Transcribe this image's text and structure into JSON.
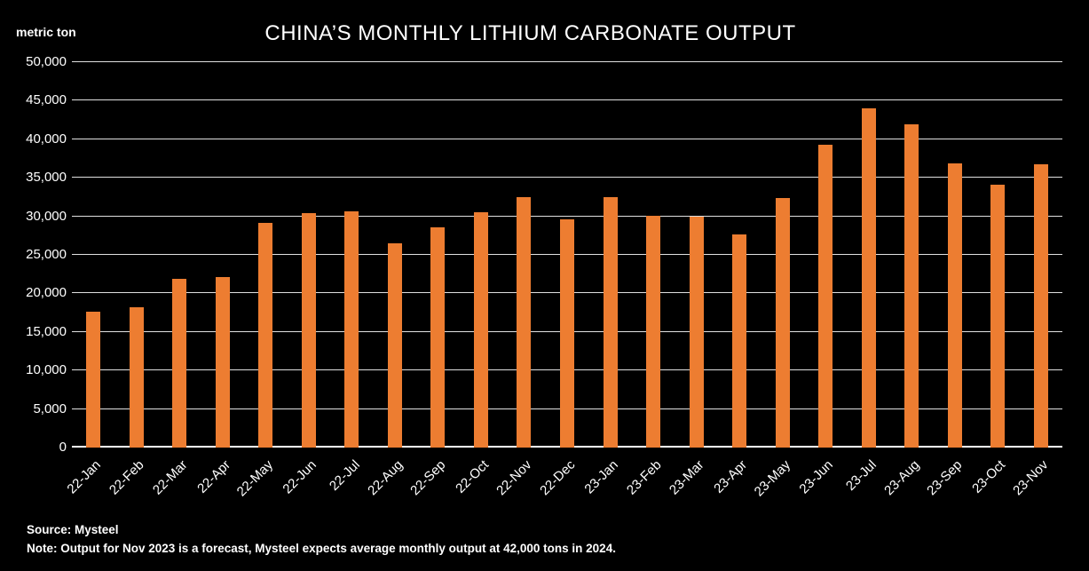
{
  "chart_data": {
    "type": "bar",
    "title": "CHINA’S MONTHLY LITHIUM CARBONATE OUTPUT",
    "ylabel": "metric ton",
    "xlabel": "",
    "ylim": [
      0,
      50000
    ],
    "grid": true,
    "legend": "none",
    "bar_color": "#ED7D31",
    "background_color": "#000000",
    "text_color": "#FFFFFF",
    "yticks": [
      0,
      5000,
      10000,
      15000,
      20000,
      25000,
      30000,
      35000,
      40000,
      45000,
      50000
    ],
    "ytick_labels": [
      "0",
      "5,000",
      "10,000",
      "15,000",
      "20,000",
      "25,000",
      "30,000",
      "35,000",
      "40,000",
      "45,000",
      "50,000"
    ],
    "categories": [
      "22-Jan",
      "22-Feb",
      "22-Mar",
      "22-Apr",
      "22-May",
      "22-Jun",
      "22-Jul",
      "22-Aug",
      "22-Sep",
      "22-Oct",
      "22-Nov",
      "22-Dec",
      "23-Jan",
      "23-Feb",
      "23-Mar",
      "23-Apr",
      "23-May",
      "23-Jun",
      "23-Jul",
      "23-Aug",
      "23-Sep",
      "23-Oct",
      "23-Nov"
    ],
    "values": [
      17600,
      18200,
      21900,
      22100,
      29200,
      30400,
      30600,
      26500,
      28600,
      30500,
      32500,
      29600,
      32500,
      30100,
      29900,
      27700,
      32400,
      39300,
      44000,
      41900,
      36900,
      34100,
      36800
    ]
  },
  "footer": {
    "source": "Source: Mysteel",
    "note": "Note: Output for Nov 2023 is a forecast, Mysteel expects average monthly output at 42,000 tons in 2024."
  }
}
